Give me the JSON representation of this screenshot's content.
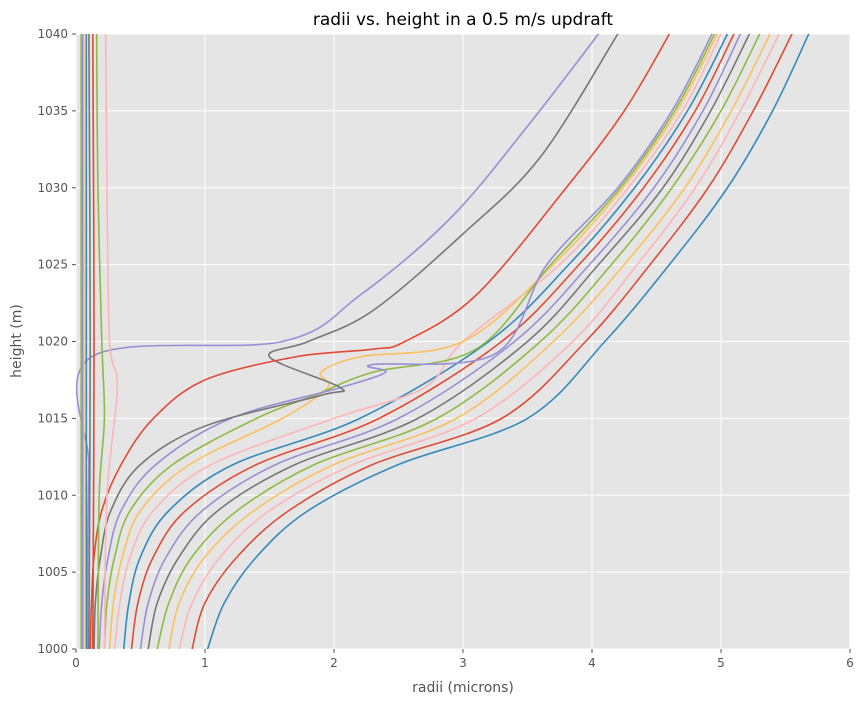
{
  "chart_data": {
    "type": "line",
    "title": "radii vs. height in a 0.5 m/s updraft",
    "xlabel": "radii (microns)",
    "ylabel": "height (m)",
    "xlim": [
      0,
      6
    ],
    "ylim": [
      1000,
      1040
    ],
    "xticks": [
      "0",
      "1",
      "2",
      "3",
      "4",
      "5",
      "6"
    ],
    "yticks": [
      "1000",
      "1005",
      "1010",
      "1015",
      "1020",
      "1025",
      "1030",
      "1035",
      "1040"
    ],
    "grid": true,
    "background": "#e5e5e5",
    "colors": [
      "#348abd",
      "#e24a33",
      "#ffb5b8",
      "#fbc15e",
      "#8eba42",
      "#777777",
      "#988ed5",
      "#e24a33",
      "#348abd",
      "#ffb5b8"
    ],
    "series": [
      {
        "color": "#348abd",
        "points": [
          [
            1.02,
            1000
          ],
          [
            1.15,
            1003
          ],
          [
            1.4,
            1006
          ],
          [
            1.8,
            1009
          ],
          [
            2.5,
            1012
          ],
          [
            3.5,
            1015
          ],
          [
            4.1,
            1020
          ],
          [
            4.6,
            1025
          ],
          [
            5.05,
            1030
          ],
          [
            5.4,
            1035
          ],
          [
            5.68,
            1040
          ]
        ]
      },
      {
        "color": "#e24a33",
        "points": [
          [
            0.9,
            1000
          ],
          [
            1.0,
            1003
          ],
          [
            1.25,
            1006
          ],
          [
            1.65,
            1009
          ],
          [
            2.3,
            1012
          ],
          [
            3.3,
            1015
          ],
          [
            3.95,
            1020
          ],
          [
            4.45,
            1025
          ],
          [
            4.9,
            1030
          ],
          [
            5.25,
            1035
          ],
          [
            5.55,
            1040
          ]
        ]
      },
      {
        "color": "#ffb5b8",
        "points": [
          [
            0.8,
            1000
          ],
          [
            0.9,
            1003
          ],
          [
            1.12,
            1006
          ],
          [
            1.5,
            1009
          ],
          [
            2.15,
            1012
          ],
          [
            3.1,
            1015
          ],
          [
            3.85,
            1020
          ],
          [
            4.35,
            1025
          ],
          [
            4.8,
            1030
          ],
          [
            5.15,
            1035
          ],
          [
            5.45,
            1040
          ]
        ]
      },
      {
        "color": "#fbc15e",
        "points": [
          [
            0.72,
            1000
          ],
          [
            0.8,
            1003
          ],
          [
            1.0,
            1006
          ],
          [
            1.38,
            1009
          ],
          [
            2.0,
            1012
          ],
          [
            2.95,
            1015
          ],
          [
            3.7,
            1020
          ],
          [
            4.25,
            1025
          ],
          [
            4.72,
            1030
          ],
          [
            5.08,
            1035
          ],
          [
            5.38,
            1040
          ]
        ]
      },
      {
        "color": "#8eba42",
        "points": [
          [
            0.63,
            1000
          ],
          [
            0.72,
            1003
          ],
          [
            0.9,
            1006
          ],
          [
            1.25,
            1009
          ],
          [
            1.85,
            1012
          ],
          [
            2.8,
            1015
          ],
          [
            3.6,
            1020
          ],
          [
            4.15,
            1025
          ],
          [
            4.62,
            1030
          ],
          [
            5.0,
            1035
          ],
          [
            5.3,
            1040
          ]
        ]
      },
      {
        "color": "#777777",
        "points": [
          [
            0.56,
            1000
          ],
          [
            0.63,
            1003
          ],
          [
            0.8,
            1006
          ],
          [
            1.1,
            1009
          ],
          [
            1.7,
            1012
          ],
          [
            2.65,
            1015
          ],
          [
            3.5,
            1020
          ],
          [
            4.05,
            1025
          ],
          [
            4.55,
            1030
          ],
          [
            4.92,
            1035
          ],
          [
            5.22,
            1040
          ]
        ]
      },
      {
        "color": "#988ed5",
        "points": [
          [
            0.5,
            1000
          ],
          [
            0.56,
            1003
          ],
          [
            0.7,
            1006
          ],
          [
            0.98,
            1009
          ],
          [
            1.55,
            1012
          ],
          [
            2.5,
            1015
          ],
          [
            3.4,
            1020
          ],
          [
            3.98,
            1025
          ],
          [
            4.48,
            1030
          ],
          [
            4.86,
            1035
          ],
          [
            5.15,
            1040
          ]
        ]
      },
      {
        "color": "#e24a33",
        "points": [
          [
            0.43,
            1000
          ],
          [
            0.48,
            1003
          ],
          [
            0.6,
            1006
          ],
          [
            0.85,
            1009
          ],
          [
            1.4,
            1012
          ],
          [
            2.35,
            1015
          ],
          [
            3.3,
            1020
          ],
          [
            3.9,
            1025
          ],
          [
            4.4,
            1030
          ],
          [
            4.8,
            1035
          ],
          [
            5.1,
            1040
          ]
        ]
      },
      {
        "color": "#348abd",
        "points": [
          [
            0.37,
            1000
          ],
          [
            0.41,
            1003
          ],
          [
            0.5,
            1006
          ],
          [
            0.72,
            1009
          ],
          [
            1.22,
            1012
          ],
          [
            2.2,
            1015
          ],
          [
            3.2,
            1020
          ],
          [
            3.82,
            1025
          ],
          [
            4.33,
            1030
          ],
          [
            4.74,
            1035
          ],
          [
            5.05,
            1040
          ]
        ]
      },
      {
        "color": "#ffb5b8",
        "points": [
          [
            0.3,
            1000
          ],
          [
            0.34,
            1003
          ],
          [
            0.42,
            1006
          ],
          [
            0.6,
            1009
          ],
          [
            1.05,
            1012
          ],
          [
            2.0,
            1015
          ],
          [
            2.7,
            1017
          ],
          [
            3.0,
            1020
          ],
          [
            3.75,
            1025
          ],
          [
            4.28,
            1030
          ],
          [
            4.7,
            1035
          ],
          [
            5.0,
            1040
          ]
        ]
      },
      {
        "color": "#fbc15e",
        "points": [
          [
            0.26,
            1000
          ],
          [
            0.29,
            1003
          ],
          [
            0.36,
            1006
          ],
          [
            0.5,
            1009
          ],
          [
            0.88,
            1012
          ],
          [
            1.6,
            1015
          ],
          [
            1.95,
            1017
          ],
          [
            1.9,
            1018
          ],
          [
            2.2,
            1019
          ],
          [
            3.0,
            1020
          ],
          [
            3.7,
            1025
          ],
          [
            4.24,
            1030
          ],
          [
            4.66,
            1035
          ],
          [
            4.97,
            1040
          ]
        ]
      },
      {
        "color": "#8eba42",
        "points": [
          [
            0.22,
            1000
          ],
          [
            0.24,
            1003
          ],
          [
            0.3,
            1006
          ],
          [
            0.42,
            1009
          ],
          [
            0.75,
            1012
          ],
          [
            1.4,
            1015
          ],
          [
            1.85,
            1016.5
          ],
          [
            2.3,
            1018
          ],
          [
            3.1,
            1019.5
          ],
          [
            3.68,
            1025
          ],
          [
            4.22,
            1030
          ],
          [
            4.64,
            1035
          ],
          [
            4.95,
            1040
          ]
        ]
      },
      {
        "color": "#988ed5",
        "points": [
          [
            0.18,
            1000
          ],
          [
            0.2,
            1003
          ],
          [
            0.25,
            1006
          ],
          [
            0.35,
            1009
          ],
          [
            0.62,
            1012
          ],
          [
            1.2,
            1015
          ],
          [
            2.05,
            1017
          ],
          [
            2.4,
            1018
          ],
          [
            2.3,
            1018.5
          ],
          [
            3.25,
            1019.2
          ],
          [
            3.65,
            1025
          ],
          [
            4.2,
            1030
          ],
          [
            4.62,
            1035
          ],
          [
            4.93,
            1040
          ]
        ]
      },
      {
        "color": "#777777",
        "points": [
          [
            0.14,
            1000
          ],
          [
            0.15,
            1003
          ],
          [
            0.19,
            1006
          ],
          [
            0.27,
            1009
          ],
          [
            0.5,
            1012
          ],
          [
            1.0,
            1014.5
          ],
          [
            1.9,
            1016.5
          ],
          [
            2.05,
            1017
          ],
          [
            1.5,
            1019
          ],
          [
            1.8,
            1020
          ],
          [
            2.3,
            1022
          ],
          [
            3.0,
            1027
          ],
          [
            3.6,
            1032
          ],
          [
            4.2,
            1040
          ]
        ]
      },
      {
        "color": "#e24a33",
        "points": [
          [
            0.11,
            1000
          ],
          [
            0.12,
            1003
          ],
          [
            0.14,
            1006
          ],
          [
            0.2,
            1009
          ],
          [
            0.35,
            1012
          ],
          [
            0.6,
            1015
          ],
          [
            1.0,
            1017.5
          ],
          [
            1.7,
            1019
          ],
          [
            2.3,
            1019.5
          ],
          [
            2.55,
            1020
          ],
          [
            3.1,
            1023
          ],
          [
            3.8,
            1030
          ],
          [
            4.25,
            1035
          ],
          [
            4.6,
            1040
          ]
        ]
      },
      {
        "color": "#988ed5",
        "points": [
          [
            0.09,
            1000
          ],
          [
            0.09,
            1006
          ],
          [
            0.1,
            1012
          ],
          [
            0.12,
            1019
          ],
          [
            1.6,
            1020
          ],
          [
            2.2,
            1023
          ],
          [
            2.9,
            1028
          ],
          [
            3.5,
            1034
          ],
          [
            4.05,
            1040
          ]
        ]
      },
      {
        "color": "#8eba42",
        "points": [
          [
            0.17,
            1000
          ],
          [
            0.18,
            1010
          ],
          [
            0.22,
            1015
          ],
          [
            0.2,
            1020
          ],
          [
            0.17,
            1030
          ],
          [
            0.16,
            1040
          ]
        ]
      },
      {
        "color": "#ffb5b8",
        "points": [
          [
            0.22,
            1000
          ],
          [
            0.24,
            1010
          ],
          [
            0.32,
            1017
          ],
          [
            0.26,
            1020
          ],
          [
            0.24,
            1030
          ],
          [
            0.23,
            1040
          ]
        ]
      },
      {
        "color": "#fbc15e",
        "points": [
          [
            0.06,
            1000
          ],
          [
            0.06,
            1020
          ],
          [
            0.06,
            1040
          ]
        ]
      },
      {
        "color": "#348abd",
        "points": [
          [
            0.08,
            1000
          ],
          [
            0.08,
            1020
          ],
          [
            0.08,
            1040
          ]
        ]
      },
      {
        "color": "#777777",
        "points": [
          [
            0.1,
            1000
          ],
          [
            0.11,
            1020
          ],
          [
            0.1,
            1040
          ]
        ]
      },
      {
        "color": "#e24a33",
        "points": [
          [
            0.13,
            1000
          ],
          [
            0.14,
            1020
          ],
          [
            0.13,
            1040
          ]
        ]
      },
      {
        "color": "#988ed5",
        "points": [
          [
            0.05,
            1000
          ],
          [
            0.05,
            1020
          ],
          [
            0.05,
            1040
          ]
        ]
      },
      {
        "color": "#8eba42",
        "points": [
          [
            0.04,
            1000
          ],
          [
            0.04,
            1020
          ],
          [
            0.04,
            1040
          ]
        ]
      }
    ]
  }
}
